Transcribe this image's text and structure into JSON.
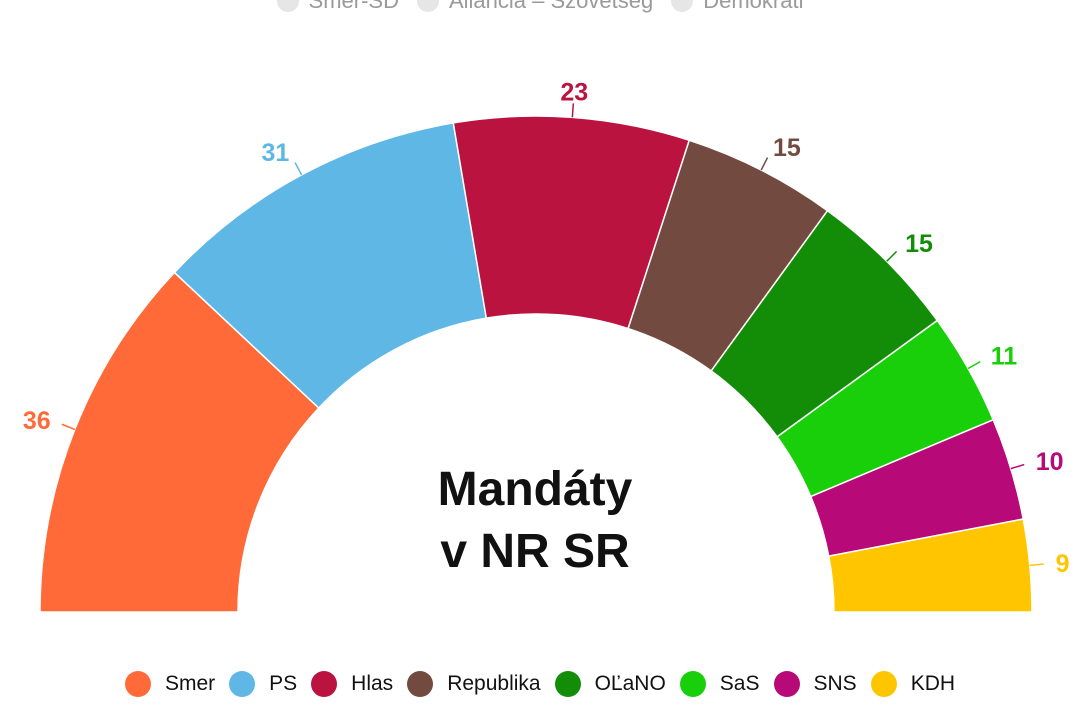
{
  "top_legend": [
    "Smer-SD",
    "Aliancia – Szövetség",
    "Demokrati"
  ],
  "chart_data": {
    "type": "pie",
    "subtype": "parliament-semicircle",
    "title_lines": [
      "Mandáty",
      "v NR SR"
    ],
    "legend_position": "bottom",
    "slices": [
      {
        "name": "Smer",
        "value": 36,
        "color": "#ff6a38"
      },
      {
        "name": "PS",
        "value": 31,
        "color": "#5eb7e5"
      },
      {
        "name": "Hlas",
        "value": 23,
        "color": "#ba133f"
      },
      {
        "name": "Republika",
        "value": 15,
        "color": "#724a40"
      },
      {
        "name": "OĽaNO",
        "value": 15,
        "color": "#138d07"
      },
      {
        "name": "SaS",
        "value": 11,
        "color": "#18cf09"
      },
      {
        "name": "SNS",
        "value": 10,
        "color": "#b70a78"
      },
      {
        "name": "KDH",
        "value": 9,
        "color": "#ffc600"
      }
    ]
  }
}
